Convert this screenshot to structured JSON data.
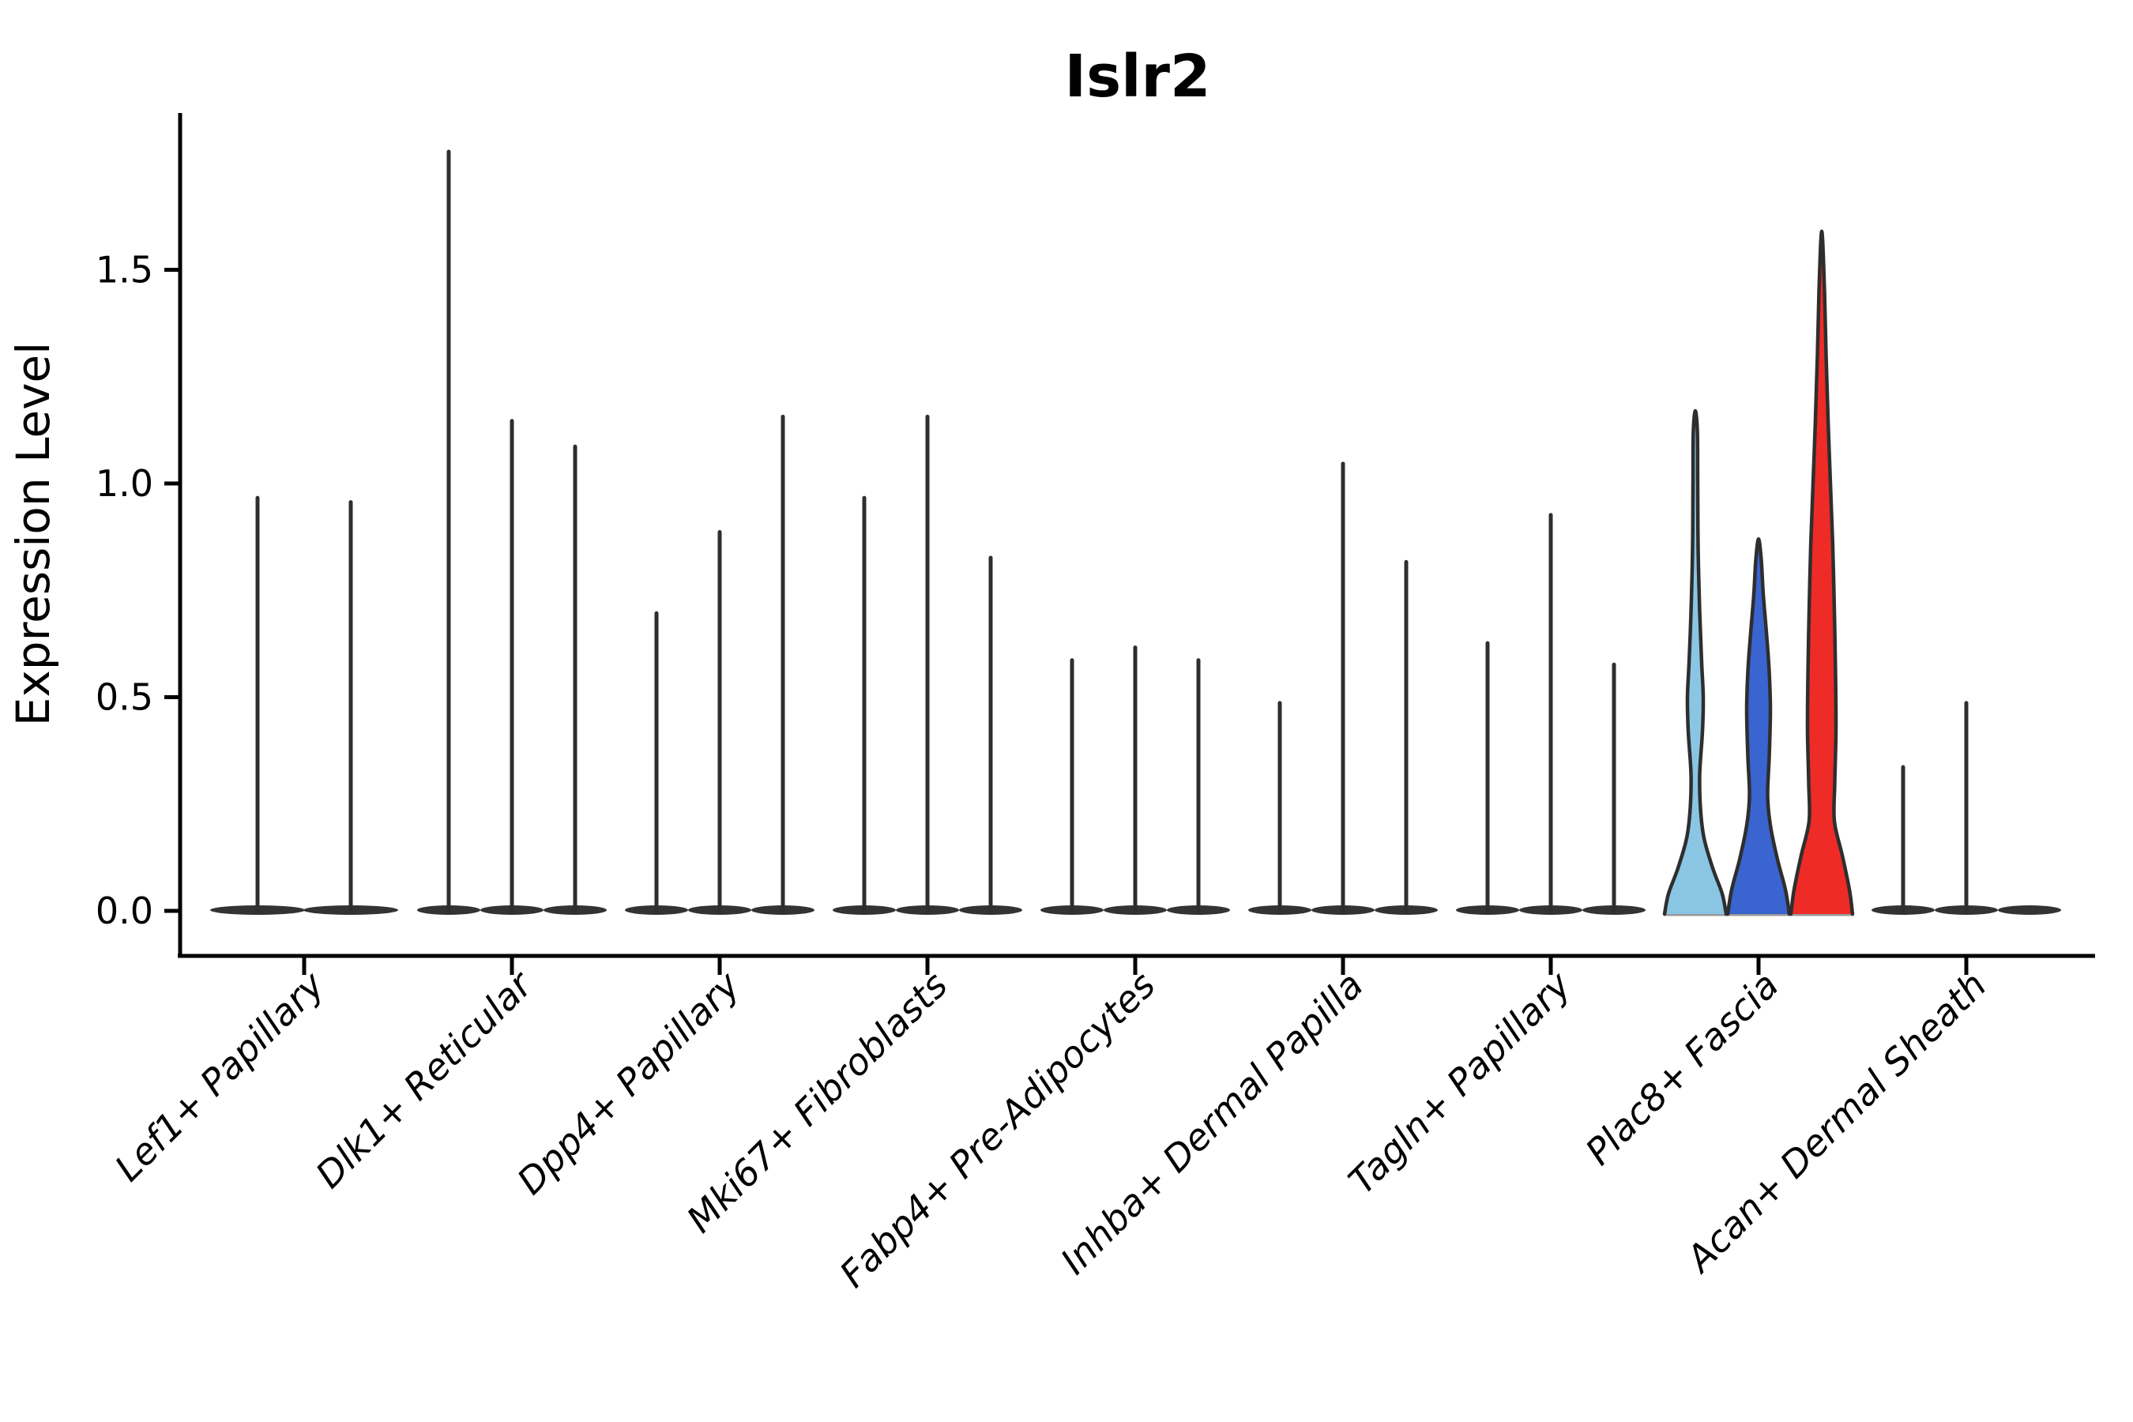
{
  "chart_data": {
    "type": "violin",
    "title": "Islr2",
    "xlabel": "",
    "ylabel": "Expression Level",
    "ylim": [
      0,
      1.87
    ],
    "yticks": [
      0.0,
      0.5,
      1.0,
      1.5
    ],
    "ytick_labels": [
      "0.0",
      "0.5",
      "1.0",
      "1.5"
    ],
    "grid": false,
    "legend_position": "none",
    "categories": [
      "Lef1+ Papillary",
      "Dlk1+ Reticular",
      "Dpp4+ Papillary",
      "Mki67+ Fibroblasts",
      "Fabp4+ Pre-Adipocytes",
      "Inhba+ Dermal Papilla",
      "Tagln+ Papillary",
      "Plac8+ Fascia",
      "Acan+ Dermal Sheath"
    ],
    "groups": [
      {
        "label": "Lef1+ Papillary",
        "violins": [
          {
            "max": 0.97,
            "fill": null
          },
          {
            "max": 0.96,
            "fill": null
          }
        ]
      },
      {
        "label": "Dlk1+ Reticular",
        "violins": [
          {
            "max": 1.78,
            "fill": null
          },
          {
            "max": 1.15,
            "fill": null
          },
          {
            "max": 1.09,
            "fill": null
          }
        ]
      },
      {
        "label": "Dpp4+ Papillary",
        "violins": [
          {
            "max": 0.7,
            "fill": null
          },
          {
            "max": 0.89,
            "fill": null
          },
          {
            "max": 1.16,
            "fill": null
          }
        ]
      },
      {
        "label": "Mki67+ Fibroblasts",
        "violins": [
          {
            "max": 0.97,
            "fill": null
          },
          {
            "max": 1.16,
            "fill": null
          },
          {
            "max": 0.83,
            "fill": null
          }
        ]
      },
      {
        "label": "Fabp4+ Pre-Adipocytes",
        "violins": [
          {
            "max": 0.59,
            "fill": null
          },
          {
            "max": 0.62,
            "fill": null
          },
          {
            "max": 0.59,
            "fill": null
          }
        ]
      },
      {
        "label": "Inhba+ Dermal Papilla",
        "violins": [
          {
            "max": 0.49,
            "fill": null
          },
          {
            "max": 1.05,
            "fill": null
          },
          {
            "max": 0.82,
            "fill": null
          }
        ]
      },
      {
        "label": "Tagln+ Papillary",
        "violins": [
          {
            "max": 0.63,
            "fill": null
          },
          {
            "max": 0.93,
            "fill": null
          },
          {
            "max": 0.58,
            "fill": null
          }
        ]
      },
      {
        "label": "Plac8+ Fascia",
        "highlighted": true,
        "violins": [
          {
            "max": 1.17,
            "fill": "#8AC6E4",
            "profile": [
              [
                0,
                39
              ],
              [
                0.04,
                34
              ],
              [
                0.1,
                22
              ],
              [
                0.17,
                11
              ],
              [
                0.24,
                6.5
              ],
              [
                0.32,
                5.5
              ],
              [
                0.42,
                9
              ],
              [
                0.5,
                10
              ],
              [
                0.58,
                8
              ],
              [
                0.7,
                5.5
              ],
              [
                0.85,
                3.5
              ],
              [
                1.0,
                3
              ],
              [
                1.12,
                2.6
              ],
              [
                1.17,
                0
              ]
            ]
          },
          {
            "max": 0.87,
            "fill": "#3A64CF",
            "profile": [
              [
                0,
                39
              ],
              [
                0.05,
                34
              ],
              [
                0.12,
                24
              ],
              [
                0.2,
                15
              ],
              [
                0.27,
                11.5
              ],
              [
                0.36,
                13.5
              ],
              [
                0.47,
                15
              ],
              [
                0.56,
                13.5
              ],
              [
                0.65,
                10
              ],
              [
                0.74,
                6
              ],
              [
                0.82,
                3.5
              ],
              [
                0.87,
                0
              ]
            ]
          },
          {
            "max": 1.59,
            "fill": "#EE2B26",
            "profile": [
              [
                0,
                39
              ],
              [
                0.05,
                35
              ],
              [
                0.13,
                26
              ],
              [
                0.21,
                16
              ],
              [
                0.3,
                16.5
              ],
              [
                0.42,
                18
              ],
              [
                0.55,
                17.5
              ],
              [
                0.7,
                16
              ],
              [
                0.85,
                14
              ],
              [
                1.0,
                11
              ],
              [
                1.15,
                8
              ],
              [
                1.3,
                5.5
              ],
              [
                1.45,
                3.5
              ],
              [
                1.59,
                0
              ]
            ]
          }
        ]
      },
      {
        "label": "Acan+ Dermal Sheath",
        "violins": [
          {
            "max": 0.34,
            "fill": null
          },
          {
            "max": 0.49,
            "fill": null
          },
          {
            "max": 0.0,
            "fill": null
          }
        ]
      }
    ],
    "style": {
      "violin_outline": "#2e2e2e",
      "flat_base_color": "#333333",
      "baseline_gray": "#999999",
      "axis_color": "#000000",
      "background": "#ffffff",
      "highlight_colors": [
        "#8AC6E4",
        "#3A64CF",
        "#EE2B26"
      ]
    }
  }
}
